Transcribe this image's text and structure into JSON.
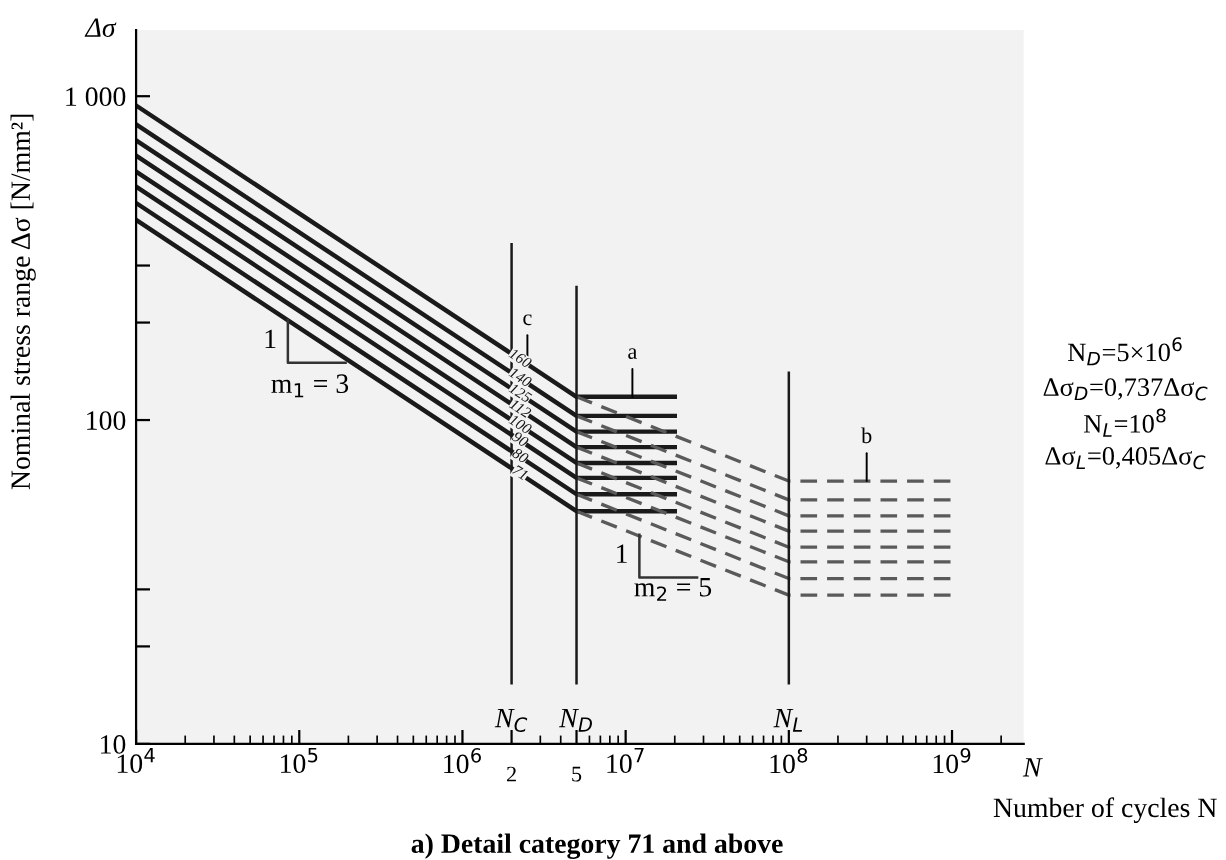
{
  "chart_data": {
    "type": "line",
    "title": "a) Detail category 71 and above",
    "xlabel": "Number of cycles N",
    "ylabel": "Nominal stress range Δσ [N/mm²]",
    "log": "xy",
    "xlim": [
      10000,
      2750000000
    ],
    "ylim": [
      10,
      1600
    ],
    "xticks": [
      {
        "value": 10000,
        "label": "10$^{4}$"
      },
      {
        "value": 100000,
        "label": "10$^{5}$"
      },
      {
        "value": 1000000,
        "label": "10$^{6}$"
      },
      {
        "value": 2000000,
        "label": null
      },
      {
        "value": 5000000,
        "label": null
      },
      {
        "value": 10000000,
        "label": "10$^{7}$"
      },
      {
        "value": 100000000,
        "label": "10$^{8}$"
      },
      {
        "value": 1000000000,
        "label": "10$^{9}$"
      }
    ],
    "yticks": [
      10,
      {
        "value": 20,
        "label": null
      },
      {
        "value": 30,
        "label": null
      },
      100,
      {
        "value": 200,
        "label": null
      },
      {
        "value": 300,
        "label": null
      },
      {
        "value": 1000,
        "label": "1 000"
      }
    ],
    "grid": false,
    "legend": false,
    "series": [
      {
        "name": "160",
        "color": "#1a1a1a",
        "line_style": "solid",
        "x": [
          10000,
          5000000,
          20000000
        ],
        "values": [
          936,
          118,
          118
        ]
      },
      {
        "name": "140",
        "color": "#1a1a1a",
        "line_style": "solid",
        "x": [
          10000,
          5000000,
          20000000
        ],
        "values": [
          819,
          103,
          103
        ]
      },
      {
        "name": "125",
        "color": "#1a1a1a",
        "line_style": "solid",
        "x": [
          10000,
          5000000,
          20000000
        ],
        "values": [
          731,
          92.1,
          92.1
        ]
      },
      {
        "name": "112",
        "color": "#1a1a1a",
        "line_style": "solid",
        "x": [
          10000,
          5000000,
          20000000
        ],
        "values": [
          655,
          82.5,
          82.5
        ]
      },
      {
        "name": "100",
        "color": "#1a1a1a",
        "line_style": "solid",
        "x": [
          10000,
          5000000,
          20000000
        ],
        "values": [
          585,
          73.7,
          73.7
        ]
      },
      {
        "name": "90",
        "color": "#1a1a1a",
        "line_style": "solid",
        "x": [
          10000,
          5000000,
          20000000
        ],
        "values": [
          526,
          66.3,
          66.3
        ]
      },
      {
        "name": "80",
        "color": "#1a1a1a",
        "line_style": "solid",
        "x": [
          10000,
          5000000,
          20000000
        ],
        "values": [
          468,
          59.0,
          59.0
        ]
      },
      {
        "name": "71",
        "color": "#1a1a1a",
        "line_style": "solid",
        "x": [
          10000,
          5000000,
          20000000
        ],
        "values": [
          415,
          52.3,
          52.3
        ]
      },
      {
        "color": "#5a5a5a",
        "line_style": "dashed",
        "x": [
          5000000,
          100000000,
          1000000000
        ],
        "values": [
          118,
          64.8,
          64.8
        ]
      },
      {
        "color": "#5a5a5a",
        "line_style": "dashed",
        "x": [
          5000000,
          100000000,
          1000000000
        ],
        "values": [
          103,
          56.7,
          56.7
        ]
      },
      {
        "color": "#5a5a5a",
        "line_style": "dashed",
        "x": [
          5000000,
          100000000,
          1000000000
        ],
        "values": [
          92.1,
          50.6,
          50.6
        ]
      },
      {
        "color": "#5a5a5a",
        "line_style": "dashed",
        "x": [
          5000000,
          100000000,
          1000000000
        ],
        "values": [
          82.5,
          45.4,
          45.4
        ]
      },
      {
        "color": "#5a5a5a",
        "line_style": "dashed",
        "x": [
          5000000,
          100000000,
          1000000000
        ],
        "values": [
          73.7,
          40.5,
          40.5
        ]
      },
      {
        "color": "#5a5a5a",
        "line_style": "dashed",
        "x": [
          5000000,
          100000000,
          1000000000
        ],
        "values": [
          66.3,
          36.5,
          36.5
        ]
      },
      {
        "color": "#5a5a5a",
        "line_style": "dashed",
        "x": [
          5000000,
          100000000,
          1000000000
        ],
        "values": [
          59.0,
          32.4,
          32.4
        ]
      },
      {
        "color": "#5a5a5a",
        "line_style": "dashed",
        "x": [
          5000000,
          100000000,
          1000000000
        ],
        "values": [
          52.3,
          28.8,
          28.8
        ]
      }
    ],
    "ref_lines": [
      {
        "axis": "x",
        "value": 2000000,
        "label": "N$_{C}$",
        "color": "#1a1a1a"
      },
      {
        "axis": "x",
        "value": 5000000,
        "label": "N$_{D}$",
        "color": "#1a1a1a"
      },
      {
        "axis": "x",
        "value": 100000000,
        "label": "N$_{L}$",
        "color": "#1a1a1a"
      }
    ],
    "annotations": [
      "Δσ",
      "N",
      "N$_{D}$=5×10$^{6}$",
      "Δσ$_{D}$=0,737Δσ$_{C}$",
      "N$_{L}$=10$^{8}$",
      "Δσ$_{L}$=0,405Δσ$_{C}$",
      "1",
      "m$_{1}$ = 3",
      "1",
      "m$_{2}$ = 5",
      "2",
      "5",
      {
        "text": "a",
        "x": 11000000,
        "y": 118
      },
      {
        "text": "b",
        "x": 300000000,
        "y": 64.8
      },
      {
        "text": "c",
        "x": 2500000,
        "y": 150
      }
    ]
  }
}
